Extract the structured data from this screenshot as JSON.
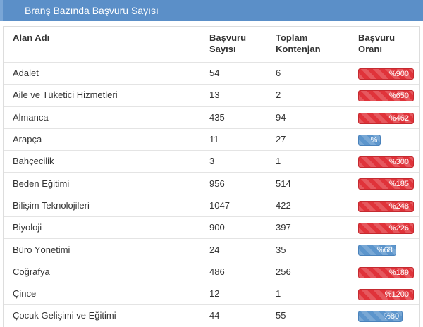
{
  "header": {
    "title": "Branş Bazında Başvuru Sayısı"
  },
  "table": {
    "columns": [
      "Alan Adı",
      "Başvuru\nSayısı",
      "Toplam\nKontenjan",
      "Başvuru\nOranı"
    ],
    "rows": [
      {
        "name": "Adalet",
        "applications": 54,
        "quota": 6,
        "ratio": {
          "value": 900,
          "label": "%900"
        }
      },
      {
        "name": "Aile ve Tüketici Hizmetleri",
        "applications": 13,
        "quota": 2,
        "ratio": {
          "value": 650,
          "label": "%650"
        }
      },
      {
        "name": "Almanca",
        "applications": 435,
        "quota": 94,
        "ratio": {
          "value": 462,
          "label": "%462"
        }
      },
      {
        "name": "Arapça",
        "applications": 11,
        "quota": 27,
        "ratio": {
          "value": 41,
          "label": "%"
        }
      },
      {
        "name": "Bahçecilik",
        "applications": 3,
        "quota": 1,
        "ratio": {
          "value": 300,
          "label": "%300"
        }
      },
      {
        "name": "Beden Eğitimi",
        "applications": 956,
        "quota": 514,
        "ratio": {
          "value": 185,
          "label": "%185"
        }
      },
      {
        "name": "Bilişim Teknolojileri",
        "applications": 1047,
        "quota": 422,
        "ratio": {
          "value": 248,
          "label": "%248"
        }
      },
      {
        "name": "Biyoloji",
        "applications": 900,
        "quota": 397,
        "ratio": {
          "value": 226,
          "label": "%226"
        }
      },
      {
        "name": "Büro Yönetimi",
        "applications": 24,
        "quota": 35,
        "ratio": {
          "value": 68,
          "label": "%68"
        }
      },
      {
        "name": "Coğrafya",
        "applications": 486,
        "quota": 256,
        "ratio": {
          "value": 189,
          "label": "%189"
        }
      },
      {
        "name": "Çince",
        "applications": 12,
        "quota": 1,
        "ratio": {
          "value": 1200,
          "label": "%1200"
        }
      },
      {
        "name": "Çocuk Gelişimi ve Eğitimi",
        "applications": 44,
        "quota": 55,
        "ratio": {
          "value": 80,
          "label": "%80"
        }
      }
    ]
  }
}
